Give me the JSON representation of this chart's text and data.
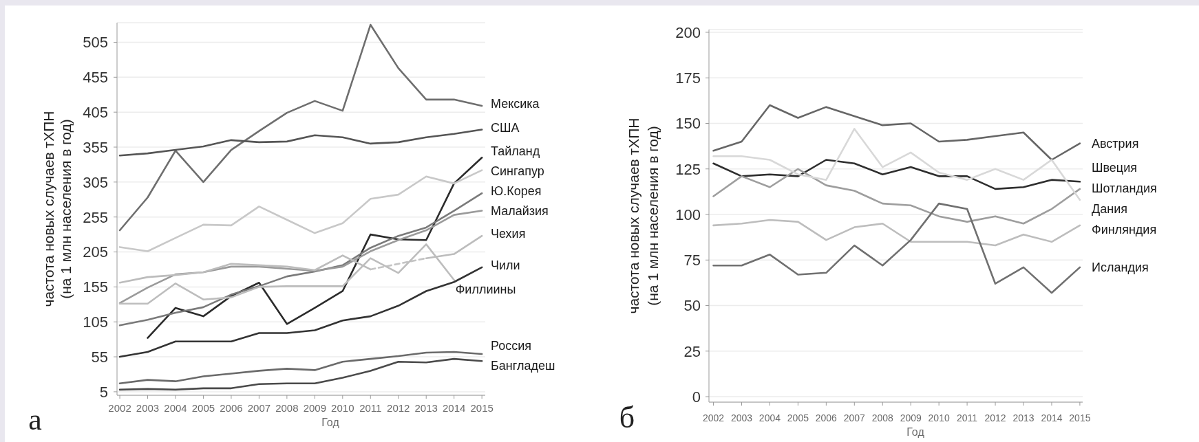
{
  "chart_data": [
    {
      "type": "line",
      "title": "а",
      "xlabel": "Год",
      "ylabel": "частота новых случаев тХПН\n(на 1 млн населения в год)",
      "x": [
        2002,
        2003,
        2004,
        2005,
        2006,
        2007,
        2008,
        2009,
        2010,
        2011,
        2012,
        2013,
        2014,
        2015
      ],
      "xlim": [
        2001.9,
        2015.12
      ],
      "xticks": [
        2002,
        2003,
        2004,
        2005,
        2006,
        2007,
        2008,
        2009,
        2010,
        2011,
        2012,
        2013,
        2014,
        2015
      ],
      "ylim": [
        0,
        533
      ],
      "yticks": [
        5,
        55,
        105,
        155,
        205,
        255,
        305,
        355,
        405,
        455,
        505
      ],
      "grid": "y",
      "series": [
        {
          "name": "Мексика",
          "color": "#6e6e6e",
          "values": [
            236,
            283,
            350,
            305,
            351,
            378,
            404,
            421,
            407,
            530,
            468,
            423,
            423,
            414
          ]
        },
        {
          "name": "США",
          "color": "#555555",
          "values": [
            343,
            346,
            351,
            356,
            365,
            362,
            363,
            372,
            369,
            360,
            362,
            369,
            374,
            380
          ]
        },
        {
          "name": "Тайланд",
          "color": "#2b2b2b",
          "values": [
            null,
            82,
            125,
            113,
            142,
            161,
            102,
            125,
            149,
            230,
            223,
            222,
            303,
            340
          ]
        },
        {
          "name": "Сингапур",
          "color": "#c8c8c8",
          "values": [
            212,
            206,
            225,
            244,
            243,
            270,
            251,
            232,
            246,
            281,
            287,
            313,
            303,
            322
          ]
        },
        {
          "name": "Ю.Корея",
          "color": "#7a7a7a",
          "values": [
            100,
            108,
            118,
            126,
            144,
            156,
            170,
            177,
            186,
            211,
            228,
            240,
            264,
            289
          ]
        },
        {
          "name": "Малайзия",
          "color": "#9a9a9a",
          "values": [
            132,
            154,
            173,
            176,
            184,
            184,
            181,
            178,
            184,
            206,
            222,
            236,
            258,
            264
          ]
        },
        {
          "name": "Чехия",
          "color": "#bcbcbc",
          "values": [
            161,
            169,
            172,
            176,
            188,
            186,
            184,
            179,
            200,
            180,
            null,
            196,
            202,
            228
          ]
        },
        {
          "color": "#c4c4c4",
          "line_style": "dashed",
          "x": [
            2011,
            2013
          ],
          "values": [
            180,
            196
          ]
        },
        {
          "name": "Филлиины",
          "color": "#bdbdbd",
          "values": [
            131,
            131,
            160,
            137,
            140,
            155,
            156,
            156,
            156,
            196,
            175,
            216,
            165,
            null
          ]
        },
        {
          "name": "Чили",
          "color": "#333333",
          "values": [
            55,
            62,
            77,
            77,
            77,
            89,
            89,
            93,
            107,
            113,
            128,
            149,
            162,
            183
          ]
        },
        {
          "name": "Россия",
          "color": "#6a6a6a",
          "values": [
            17,
            22,
            20,
            27,
            31,
            35,
            38,
            36,
            48,
            52,
            56,
            61,
            62,
            59
          ]
        },
        {
          "name": "Бангладеш",
          "color": "#4a4a4a",
          "values": [
            8,
            9,
            8,
            10,
            10,
            16,
            17,
            17,
            25,
            35,
            48,
            47,
            52,
            49
          ]
        }
      ]
    },
    {
      "type": "line",
      "title": "б",
      "xlabel": "Год",
      "ylabel": "частота новых случаев тХПН\n(на 1 млн населения в год)",
      "x": [
        2002,
        2003,
        2004,
        2005,
        2006,
        2007,
        2008,
        2009,
        2010,
        2011,
        2012,
        2013,
        2014,
        2015
      ],
      "xlim": [
        2001.84,
        2015.1
      ],
      "xticks": [
        2002,
        2003,
        2004,
        2005,
        2006,
        2007,
        2008,
        2009,
        2010,
        2011,
        2012,
        2013,
        2014,
        2015
      ],
      "ylim": [
        -3,
        201.5
      ],
      "yticks": [
        0,
        25,
        50,
        75,
        100,
        125,
        150,
        175,
        200
      ],
      "grid": "y",
      "series": [
        {
          "name": "Австрия",
          "color": "#666666",
          "values": [
            135,
            140,
            160,
            153,
            159,
            154,
            149,
            150,
            140,
            141,
            143,
            145,
            130,
            139
          ]
        },
        {
          "name": "Швеция",
          "color": "#2e2e2e",
          "values": [
            128,
            121,
            122,
            121,
            130,
            128,
            122,
            126,
            121,
            121,
            114,
            115,
            119,
            118
          ]
        },
        {
          "name": "Шотландия",
          "color": "#9e9e9e",
          "values": [
            110,
            121,
            115,
            125,
            116,
            113,
            106,
            105,
            99,
            96,
            99,
            95,
            103,
            114
          ]
        },
        {
          "name": "Дания",
          "color": "#d8d8d8",
          "values": [
            132,
            132,
            130,
            122,
            119,
            147,
            126,
            134,
            123,
            119,
            125,
            119,
            130,
            108
          ]
        },
        {
          "name": "Финляндия",
          "color": "#bdbdbd",
          "values": [
            94,
            95,
            97,
            96,
            86,
            93,
            95,
            85,
            85,
            85,
            83,
            89,
            85,
            94
          ]
        },
        {
          "name": "Исландия",
          "color": "#707070",
          "values": [
            72,
            72,
            78,
            67,
            68,
            83,
            72,
            86,
            106,
            103,
            62,
            71,
            57,
            71
          ]
        }
      ]
    }
  ]
}
